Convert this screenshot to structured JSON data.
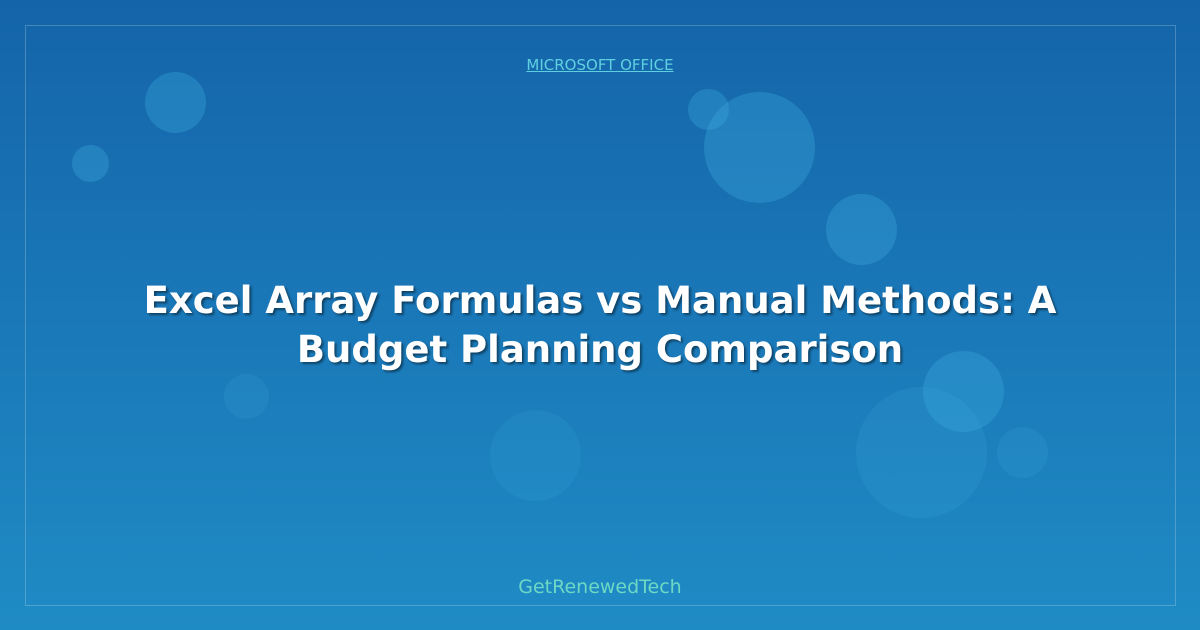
{
  "category": "MICROSOFT OFFICE",
  "title": "Excel Array Formulas vs Manual Methods: A Budget Planning Comparison",
  "brand": "GetRenewedTech",
  "colors": {
    "background_top": "#1464a9",
    "background_bottom": "#1f8bc5",
    "category": "#5fd0e0",
    "brand": "#6dd8c4"
  }
}
